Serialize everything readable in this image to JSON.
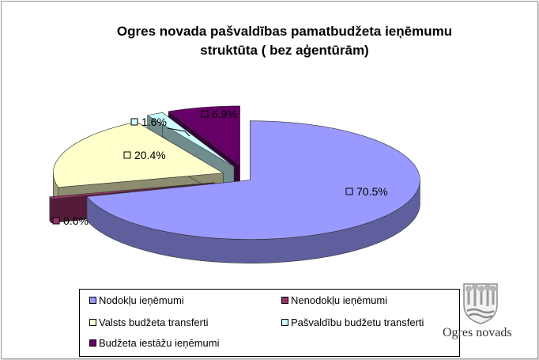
{
  "chart_data": {
    "type": "pie",
    "title_lines": [
      "Ogres novada pašvaldības pamatbudžeta ieņēmumu",
      "struktūta ( bez aģentūrām)"
    ],
    "slices": [
      {
        "name": "Nodokļu ieņēmumi",
        "value": 70.5,
        "label": "70.5%",
        "color": "#9999ff"
      },
      {
        "name": "Nenodokļu ieņēmumi",
        "value": 0.6,
        "label": "0.6%",
        "color": "#993366"
      },
      {
        "name": "Valsts budžeta transferti",
        "value": 20.4,
        "label": "20.4%",
        "color": "#ffffcc"
      },
      {
        "name": "Pašvaldību budžetu transferti",
        "value": 1.6,
        "label": "1.6%",
        "color": "#ccffff"
      },
      {
        "name": "Budžeta iestāžu ieņēmumi",
        "value": 6.9,
        "label": "6.9%",
        "color": "#660066"
      }
    ],
    "legend_position": "bottom"
  },
  "logo": {
    "text": "Ogres novads"
  }
}
